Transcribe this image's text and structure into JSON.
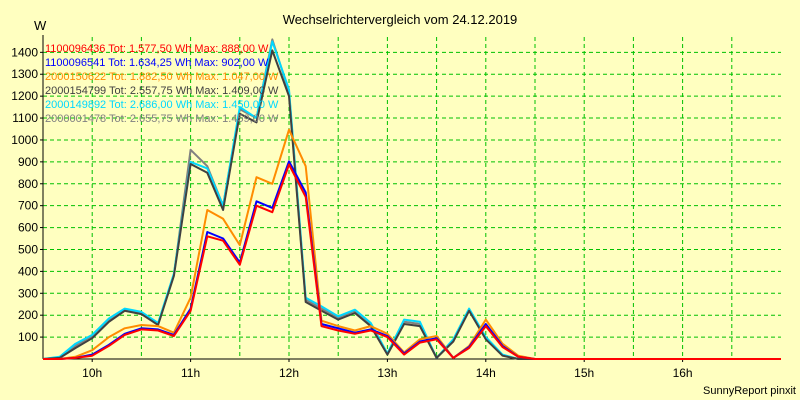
{
  "chart_data": {
    "type": "line",
    "title": "Wechselrichtervergleich vom 24.12.2019",
    "ylabel": "W",
    "xlabel": "",
    "footer": "SunnyReport pinxit",
    "xlim": [
      9.5,
      17.0
    ],
    "ylim": [
      0,
      1470
    ],
    "yticks": [
      100,
      200,
      300,
      400,
      500,
      600,
      700,
      800,
      900,
      1000,
      1100,
      1200,
      1300,
      1400
    ],
    "xticks": [
      {
        "value": 10,
        "label": "10h"
      },
      {
        "value": 11,
        "label": "11h"
      },
      {
        "value": 12,
        "label": "12h"
      },
      {
        "value": 13,
        "label": "13h"
      },
      {
        "value": 14,
        "label": "14h"
      },
      {
        "value": 15,
        "label": "15h"
      },
      {
        "value": 16,
        "label": "16h"
      }
    ],
    "grid": true,
    "legend_position": "top-left",
    "x": [
      9.5,
      9.67,
      9.83,
      10.0,
      10.17,
      10.33,
      10.5,
      10.67,
      10.83,
      11.0,
      11.17,
      11.33,
      11.5,
      11.67,
      11.83,
      12.0,
      12.17,
      12.33,
      12.5,
      12.67,
      12.83,
      13.0,
      13.17,
      13.33,
      13.5,
      13.67,
      13.83,
      14.0,
      14.17,
      14.33,
      14.5,
      14.67,
      14.83,
      15.0,
      15.17,
      15.33,
      15.5,
      15.67,
      15.83,
      16.0,
      16.17,
      16.33,
      16.5,
      16.67,
      16.83,
      17.0
    ],
    "series": [
      {
        "name": "1100096436",
        "legend": "1100096436 Tot: 1.577,50 Wh Max: 888,00 W",
        "color": "#ff0000",
        "values": [
          0,
          0,
          5,
          15,
          60,
          110,
          135,
          130,
          105,
          220,
          560,
          540,
          430,
          700,
          670,
          888,
          740,
          150,
          130,
          115,
          130,
          100,
          20,
          75,
          90,
          5,
          50,
          150,
          55,
          10,
          0,
          0,
          0,
          0,
          0,
          0,
          0,
          0,
          0,
          0,
          0,
          0,
          0,
          0,
          0,
          0
        ]
      },
      {
        "name": "1100096541",
        "legend": "1100096541 Tot: 1.634,25 Wh Max: 902,00 W",
        "color": "#0000ff",
        "values": [
          0,
          0,
          5,
          20,
          65,
          115,
          140,
          135,
          110,
          230,
          580,
          550,
          440,
          720,
          690,
          902,
          760,
          160,
          140,
          120,
          135,
          105,
          25,
          80,
          95,
          5,
          55,
          160,
          60,
          10,
          0,
          0,
          0,
          0,
          0,
          0,
          0,
          0,
          0,
          0,
          0,
          0,
          0,
          0,
          0,
          0
        ]
      },
      {
        "name": "2000150622",
        "legend": "2000150622 Tot: 1.882,50 Wh Max: 1.047,00 W",
        "color": "#ff8c00",
        "values": [
          0,
          0,
          10,
          40,
          100,
          140,
          155,
          150,
          120,
          280,
          680,
          640,
          520,
          830,
          800,
          1047,
          880,
          175,
          150,
          130,
          150,
          115,
          30,
          90,
          105,
          5,
          60,
          180,
          70,
          15,
          0,
          0,
          0,
          0,
          0,
          0,
          0,
          0,
          0,
          0,
          0,
          0,
          0,
          0,
          0,
          0
        ]
      },
      {
        "name": "2000154799",
        "legend": "2000154799 Tot: 2.557,75 Wh Max: 1.409,00 W",
        "color": "#404040",
        "values": [
          0,
          5,
          50,
          95,
          170,
          220,
          205,
          155,
          380,
          890,
          850,
          680,
          1120,
          1080,
          1409,
          1200,
          260,
          220,
          180,
          210,
          150,
          20,
          160,
          150,
          5,
          80,
          220,
          90,
          15,
          0,
          0,
          0,
          0,
          0,
          0,
          0,
          0,
          0,
          0,
          0,
          0,
          0,
          0,
          0,
          0,
          0
        ]
      },
      {
        "name": "2000149892",
        "legend": "2000149892 Tot: 2.686,00 Wh Max: 1.450,00 W",
        "color": "#00d8ff",
        "values": [
          0,
          10,
          70,
          110,
          185,
          230,
          215,
          165,
          390,
          900,
          870,
          700,
          1150,
          1100,
          1450,
          1230,
          280,
          240,
          195,
          225,
          165,
          25,
          180,
          170,
          5,
          90,
          230,
          100,
          20,
          0,
          0,
          0,
          0,
          0,
          0,
          0,
          0,
          0,
          0,
          0,
          0,
          0,
          0,
          0,
          0,
          0
        ]
      },
      {
        "name": "2000001478",
        "legend": "2000001478 Tot: 2.655,75 Wh Max: 1.459,00 W",
        "color": "#808080",
        "values": [
          0,
          8,
          60,
          105,
          180,
          225,
          210,
          160,
          385,
          955,
          880,
          700,
          1140,
          1100,
          1459,
          1220,
          270,
          230,
          190,
          220,
          160,
          22,
          170,
          160,
          5,
          85,
          225,
          95,
          18,
          0,
          0,
          0,
          0,
          0,
          0,
          0,
          0,
          0,
          0,
          0,
          0,
          0,
          0,
          0,
          0,
          0
        ]
      }
    ]
  }
}
